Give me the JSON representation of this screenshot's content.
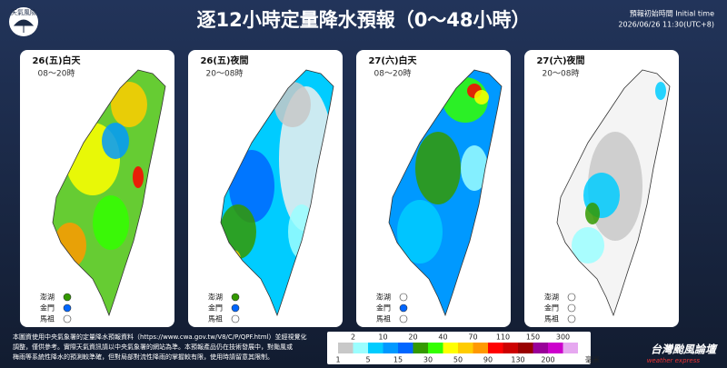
{
  "logo": "天氣風險",
  "title": "逐12小時定量降水預報（0～48小時）",
  "init_label": "預報初始時間 Initial time",
  "init_time": "2026/06/26 11:30(UTC+8)",
  "panels": [
    {
      "day": "26(五)白天",
      "hours": "08～20時"
    },
    {
      "day": "26(五)夜間",
      "hours": "20～08時"
    },
    {
      "day": "27(六)白天",
      "hours": "08～20時"
    },
    {
      "day": "27(六)夜間",
      "hours": "20～08時"
    }
  ],
  "islands": [
    "澎湖",
    "金門",
    "馬祖"
  ],
  "note": [
    "本圖資使用中央氣象署的定量降水預報資料（https://www.cwa.gov.tw/V8/C/P/QPF.html）並經視覺化",
    "調整，僅供參考。實際天氣資訊請以中央氣象署的網站為準。本預報產品仍在技術發展中，對颱風或",
    "梅雨等系統性降水的預測較準確，但對局部對流性降雨的掌握較有限，使用時請留意其限制。"
  ],
  "legend": {
    "ticks": [
      1,
      2,
      5,
      10,
      15,
      20,
      30,
      40,
      50,
      70,
      90,
      110,
      130,
      150,
      200,
      300
    ],
    "colors": [
      "#c8c8c8",
      "#9bfeff",
      "#00ccff",
      "#0099ff",
      "#0066ff",
      "#339900",
      "#33ff00",
      "#ffff00",
      "#ffcc00",
      "#ff9900",
      "#ff0000",
      "#cc0000",
      "#990000",
      "#990099",
      "#cc00cc",
      "#e6a8f0"
    ],
    "unit": "毫米"
  },
  "brand": "台灣颱風論壇",
  "brand_sub": "weather express"
}
